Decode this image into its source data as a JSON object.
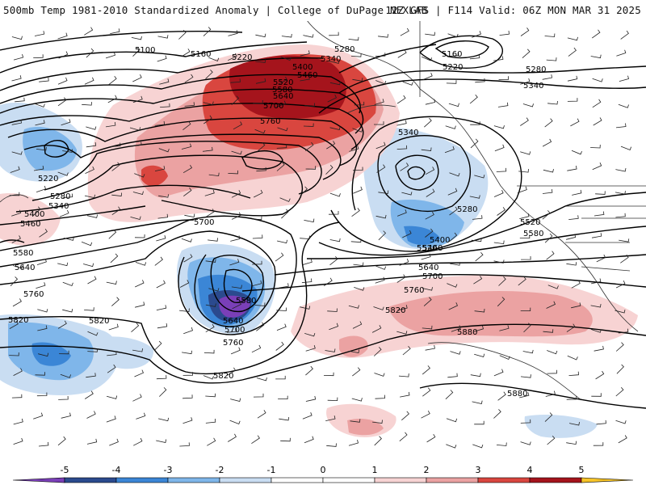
{
  "header": {
    "left": "500mb Temp 1981-2010 Standardized Anomaly | College of DuPage NEXLAB",
    "right": "12Z GFS | F114 Valid: 06Z MON MAR 31 2025"
  },
  "contours": {
    "labels": [
      "5100",
      "5160",
      "5220",
      "5280",
      "5340",
      "5400",
      "5460",
      "5520",
      "5580",
      "5640",
      "5700",
      "5760",
      "5820",
      "5880",
      "5160",
      "5220",
      "5280",
      "5340",
      "5220",
      "5280",
      "5340",
      "5400",
      "5460",
      "5520",
      "5580",
      "5640",
      "5700",
      "5760",
      "5820",
      "5880",
      "5520",
      "5580",
      "5640",
      "5700",
      "5760",
      "5820",
      "5580",
      "5640",
      "5700",
      "5760",
      "5820",
      "5340",
      "5280",
      "5400",
      "5460"
    ]
  },
  "legend": {
    "ticks": [
      "-5",
      "-4",
      "-3",
      "-2",
      "-1",
      "0",
      "1",
      "2",
      "3",
      "4",
      "5"
    ],
    "colors": [
      "#7a3fb8",
      "#2b4a8e",
      "#3b86d6",
      "#7fb6ea",
      "#c9ddf2",
      "#ffffff",
      "#ffffff",
      "#f7d3d3",
      "#eba2a2",
      "#d9463f",
      "#a5141c",
      "#f7c428"
    ]
  }
}
